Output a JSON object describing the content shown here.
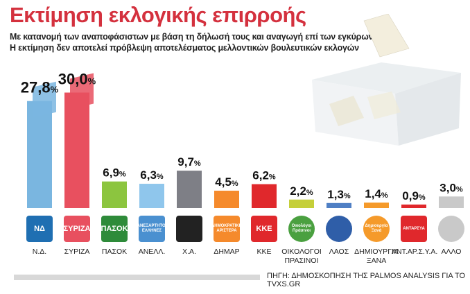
{
  "title": "Εκτίμηση εκλογικής επιρροής",
  "subtitle_1": "Με κατανομή των αναποφάσιστων με βάση τη δήλωσή τους και αναγωγή επί των εγκύρων.",
  "subtitle_2": "Η εκτίμηση δεν αποτελεί πρόβλεψη αποτελέσματος μελλοντικών βουλευτικών εκλογών",
  "source": "ΠΗΓΗ: ΔΗΜΟΣΚΟΠΗΣΗ ΤΗΣ PALMOS ANALYSIS ΓΙΑ ΤΟ TVXS.GR",
  "logos": [
    {
      "icon": "nd-logo",
      "text": "ΝΔ"
    },
    {
      "icon": "syriza-logo",
      "text": "ΣΥΡΙΖΑ"
    },
    {
      "icon": "pasok-logo",
      "text": "ΠΑΣΟΚ"
    },
    {
      "icon": "anel-logo",
      "text": "ΑΝΕΞΑΡΤΗΤΟΙ ΕΛΛΗΝΕΣ"
    },
    {
      "icon": "xa-logo",
      "text": ""
    },
    {
      "icon": "dimar-logo",
      "text": "ΔΗΜΟΚΡΑΤΙΚΗ ΑΡΙΣΤΕΡΑ"
    },
    {
      "icon": "kke-logo",
      "text": "ΚΚΕ"
    },
    {
      "icon": "oikologoi-logo",
      "text": "Οικολόγοι Πράσινοι"
    },
    {
      "icon": "laos-logo",
      "text": ""
    },
    {
      "icon": "dimiourgia-logo",
      "text": "Δημιουργία Ξανά"
    },
    {
      "icon": "antarsya-logo",
      "text": "ΑΝΤΑΡΣΥΑ"
    },
    {
      "icon": "allo-logo",
      "text": ""
    }
  ],
  "chart_data": {
    "type": "bar",
    "categories": [
      "Ν.Δ.",
      "ΣΥΡΙΖΑ",
      "ΠΑΣΟΚ",
      "ΑΝΕΛΛ.",
      "Χ.Α.",
      "ΔΗΜΑΡ",
      "ΚΚΕ",
      "ΟΙΚΟΛΟΓΟΙ ΠΡΑΣΙΝΟΙ",
      "ΛΑΟΣ",
      "ΔΗΜΙΟΥΡΓΙΑ ΞΑΝΑ",
      "ΑΝΤ.ΑΡ.Σ.Υ.Α.",
      "ΑΛΛΟ"
    ],
    "values": [
      27.8,
      30.0,
      6.9,
      6.3,
      9.7,
      4.5,
      6.2,
      2.2,
      1.3,
      1.4,
      0.9,
      3.0
    ],
    "labels": [
      "27,8%",
      "30,0%",
      "6,9%",
      "6,3%",
      "9,7%",
      "4,5%",
      "6,2%",
      "2,2%",
      "1,3%",
      "1,4%",
      "0,9%",
      "3,0%"
    ],
    "colors": [
      "#7ab6e0",
      "#e8505f",
      "#8cc53f",
      "#8fc6ec",
      "#7e7f86",
      "#f58a2c",
      "#e0282c",
      "#c5cf3a",
      "#4f7fc4",
      "#f59a2a",
      "#e0282c",
      "#c9c9c9"
    ],
    "ylim": [
      0,
      31
    ]
  }
}
